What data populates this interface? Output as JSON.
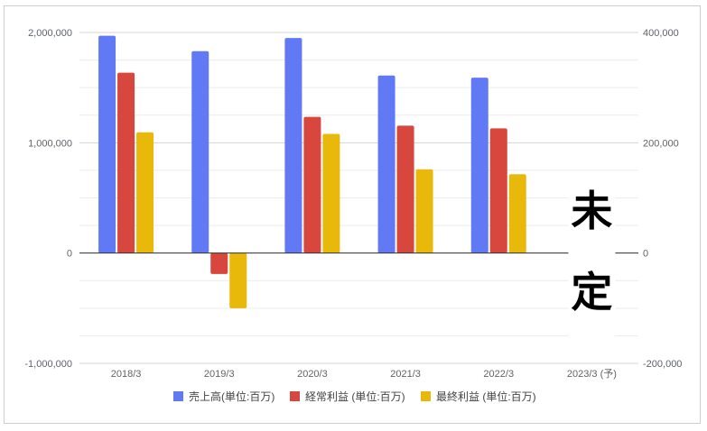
{
  "chart_data": {
    "type": "bar",
    "categories": [
      "2018/3",
      "2019/3",
      "2020/3",
      "2021/3",
      "2022/3",
      "2023/3 (予)"
    ],
    "series": [
      {
        "name": "売上高(単位:百万)",
        "axis": "left",
        "color": "#6179f5",
        "values": [
          1970000,
          1830000,
          1950000,
          1610000,
          1590000,
          null
        ]
      },
      {
        "name": "経常利益 (単位:百万)",
        "axis": "right",
        "color": "#d8473d",
        "values": [
          327000,
          -38000,
          247000,
          231000,
          226000,
          null
        ]
      },
      {
        "name": "最終利益 (単位:百万)",
        "axis": "right",
        "color": "#e8b90a",
        "values": [
          219000,
          -100000,
          216000,
          152000,
          143000,
          null
        ]
      }
    ],
    "ylim_left": [
      -1000000,
      2000000
    ],
    "ylim_right": [
      -200000,
      400000
    ],
    "yticks_left": [
      "2,000,000",
      "1,000,000",
      "0",
      "-1,000,000"
    ],
    "yticks_right": [
      "400,000",
      "200,000",
      "0",
      "-200,000"
    ],
    "legend_position": "bottom",
    "grid": true,
    "annotation": [
      "未",
      "定"
    ]
  }
}
